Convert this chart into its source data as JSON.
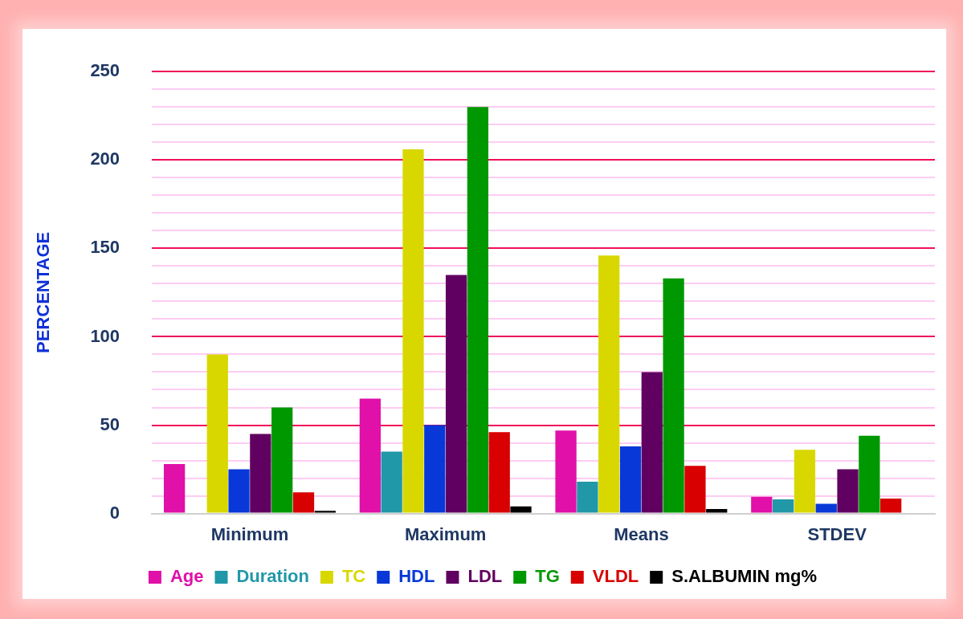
{
  "chart_data": {
    "type": "bar",
    "ylabel": "PERCENTAGE",
    "categories": [
      "Minimum",
      "Maximum",
      "Means",
      "STDEV"
    ],
    "series": [
      {
        "name": "Age",
        "color": "#e010a8",
        "values": [
          28,
          65,
          47,
          9.5
        ]
      },
      {
        "name": "Duration",
        "color": "#2098a8",
        "values": [
          0,
          35,
          18,
          8
        ]
      },
      {
        "name": "TC",
        "color": "#d8d800",
        "values": [
          90,
          206,
          146,
          36
        ]
      },
      {
        "name": "HDL",
        "color": "#0838d8",
        "values": [
          25,
          50,
          38,
          5.5
        ]
      },
      {
        "name": "LDL",
        "color": "#600060",
        "values": [
          45,
          135,
          80,
          25
        ]
      },
      {
        "name": "TG",
        "color": "#009800",
        "values": [
          60,
          230,
          133,
          44
        ]
      },
      {
        "name": "VLDL",
        "color": "#d80000",
        "values": [
          12,
          46,
          27,
          8.5
        ]
      },
      {
        "name": "S.ALBUMIN mg%",
        "color": "#000000",
        "values": [
          1.5,
          4,
          2.5,
          0
        ]
      }
    ],
    "ylim": [
      0,
      250
    ],
    "yticks": [
      0,
      {
        "value": 10,
        "label": null
      },
      {
        "value": 20,
        "label": null
      },
      {
        "value": 30,
        "label": null
      },
      {
        "value": 40,
        "label": null
      },
      50,
      {
        "value": 60,
        "label": null
      },
      {
        "value": 70,
        "label": null
      },
      {
        "value": 80,
        "label": null
      },
      {
        "value": 90,
        "label": null
      },
      100,
      {
        "value": 110,
        "label": null
      },
      {
        "value": 120,
        "label": null
      },
      {
        "value": 130,
        "label": null
      },
      {
        "value": 140,
        "label": null
      },
      150,
      {
        "value": 160,
        "label": null
      },
      {
        "value": 170,
        "label": null
      },
      {
        "value": 180,
        "label": null
      },
      {
        "value": 190,
        "label": null
      },
      200,
      {
        "value": 210,
        "label": null
      },
      {
        "value": 220,
        "label": null
      },
      {
        "value": 230,
        "label": null
      },
      {
        "value": 240,
        "label": null
      },
      250
    ],
    "grid": "y",
    "legend": "bottom"
  }
}
